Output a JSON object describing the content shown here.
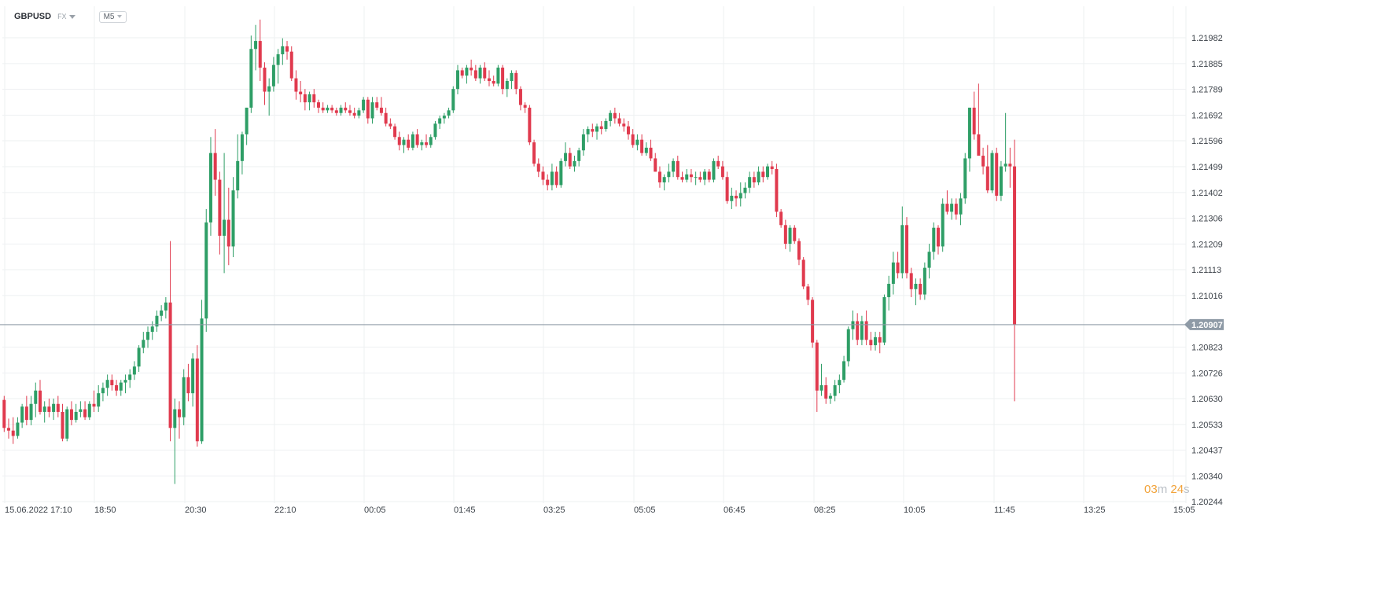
{
  "header": {
    "symbol": "GBPUSD",
    "asset_class": "FX",
    "timeframe": "M5"
  },
  "timer": {
    "minutes": "03",
    "minutes_unit": "m",
    "seconds": "24",
    "seconds_unit": "s"
  },
  "colors": {
    "up": "#2e9e66",
    "down": "#e03a4e",
    "grid": "#eef0f2",
    "current_price_line": "#8e9aa6",
    "price_label_bg": "#8e9aa6",
    "axis_text": "#3c4249"
  },
  "chart_data": {
    "type": "candlestick",
    "symbol": "GBPUSD",
    "interval": "M5",
    "current_price": 1.20907,
    "current_price_label": "1.20907",
    "y_ticks": [
      "1.21982",
      "1.21885",
      "1.21789",
      "1.21692",
      "1.21596",
      "1.21499",
      "1.21402",
      "1.21306",
      "1.21209",
      "1.21113",
      "1.21016",
      "1.20823",
      "1.20726",
      "1.20630",
      "1.20533",
      "1.20437",
      "1.20340",
      "1.20244"
    ],
    "ylim": [
      1.2023,
      1.2209
    ],
    "x_ticks": [
      "15.06.2022 17:10",
      "18:50",
      "20:30",
      "22:10",
      "00:05",
      "01:45",
      "03:25",
      "05:05",
      "06:45",
      "08:25",
      "10:05",
      "11:45",
      "13:25",
      "15:05"
    ],
    "grid": true,
    "candles": [
      [
        1.20625,
        1.2064,
        1.20505,
        1.2052
      ],
      [
        1.2052,
        1.20555,
        1.2048,
        1.2051
      ],
      [
        1.2051,
        1.2056,
        1.2046,
        1.2049
      ],
      [
        1.2049,
        1.2056,
        1.2048,
        1.2054
      ],
      [
        1.2054,
        1.2061,
        1.2052,
        1.206
      ],
      [
        1.206,
        1.2064,
        1.2053,
        1.2055
      ],
      [
        1.2055,
        1.2064,
        1.2053,
        1.2061
      ],
      [
        1.2061,
        1.2069,
        1.2056,
        1.2066
      ],
      [
        1.2066,
        1.207,
        1.2057,
        1.2058
      ],
      [
        1.2058,
        1.2062,
        1.2054,
        1.206
      ],
      [
        1.206,
        1.2063,
        1.2056,
        1.2058
      ],
      [
        1.2058,
        1.2063,
        1.2055,
        1.2061
      ],
      [
        1.2061,
        1.2064,
        1.2056,
        1.2058
      ],
      [
        1.2058,
        1.2061,
        1.2047,
        1.2048
      ],
      [
        1.2048,
        1.206,
        1.2047,
        1.2059
      ],
      [
        1.2059,
        1.2062,
        1.2053,
        1.2055
      ],
      [
        1.2055,
        1.2061,
        1.2054,
        1.2058
      ],
      [
        1.2058,
        1.2062,
        1.2056,
        1.2059
      ],
      [
        1.2059,
        1.2062,
        1.2055,
        1.2056
      ],
      [
        1.2056,
        1.2062,
        1.2055,
        1.2061
      ],
      [
        1.2061,
        1.2066,
        1.2058,
        1.206
      ],
      [
        1.206,
        1.2068,
        1.2058,
        1.2065
      ],
      [
        1.2065,
        1.2069,
        1.2062,
        1.2067
      ],
      [
        1.2067,
        1.2072,
        1.2064,
        1.207
      ],
      [
        1.207,
        1.2072,
        1.2066,
        1.2068
      ],
      [
        1.2068,
        1.207,
        1.2064,
        1.2066
      ],
      [
        1.2066,
        1.207,
        1.2064,
        1.2069
      ],
      [
        1.2069,
        1.2072,
        1.2065,
        1.207
      ],
      [
        1.207,
        1.2074,
        1.2067,
        1.2072
      ],
      [
        1.2072,
        1.2077,
        1.207,
        1.2075
      ],
      [
        1.2075,
        1.2083,
        1.2073,
        1.2082
      ],
      [
        1.2082,
        1.2088,
        1.208,
        1.2085
      ],
      [
        1.2085,
        1.209,
        1.2082,
        1.2088
      ],
      [
        1.2088,
        1.2092,
        1.2085,
        1.209
      ],
      [
        1.209,
        1.2096,
        1.2088,
        1.2094
      ],
      [
        1.2094,
        1.2098,
        1.2092,
        1.2096
      ],
      [
        1.2096,
        1.2101,
        1.2093,
        1.2099
      ],
      [
        1.2099,
        1.2122,
        1.2047,
        1.2052
      ],
      [
        1.2052,
        1.2063,
        1.2031,
        1.2059
      ],
      [
        1.2059,
        1.2062,
        1.2048,
        1.2056
      ],
      [
        1.2056,
        1.2074,
        1.2053,
        1.2071
      ],
      [
        1.2071,
        1.2076,
        1.2062,
        1.2065
      ],
      [
        1.2065,
        1.208,
        1.206,
        1.2078
      ],
      [
        1.2078,
        1.2083,
        1.2045,
        1.2047
      ],
      [
        1.2047,
        1.21,
        1.2046,
        1.2093
      ],
      [
        1.2093,
        1.2134,
        1.2088,
        1.2129
      ],
      [
        1.2129,
        1.2161,
        1.2124,
        1.2155
      ],
      [
        1.2155,
        1.2164,
        1.2139,
        1.2145
      ],
      [
        1.2145,
        1.2148,
        1.2117,
        1.2124
      ],
      [
        1.2124,
        1.2155,
        1.211,
        1.213
      ],
      [
        1.213,
        1.2142,
        1.2113,
        1.212
      ],
      [
        1.212,
        1.2146,
        1.2116,
        1.2141
      ],
      [
        1.2141,
        1.2162,
        1.2138,
        1.2152
      ],
      [
        1.2152,
        1.2163,
        1.2147,
        1.2162
      ],
      [
        1.2162,
        1.2172,
        1.2158,
        1.2172
      ],
      [
        1.2172,
        1.2199,
        1.217,
        1.2194
      ],
      [
        1.2194,
        1.2203,
        1.2186,
        1.2197
      ],
      [
        1.2197,
        1.2205,
        1.2182,
        1.2187
      ],
      [
        1.2187,
        1.2189,
        1.2173,
        1.2178
      ],
      [
        1.2178,
        1.2183,
        1.2169,
        1.218
      ],
      [
        1.218,
        1.2191,
        1.2178,
        1.2188
      ],
      [
        1.2188,
        1.2194,
        1.2181,
        1.2192
      ],
      [
        1.2192,
        1.2198,
        1.2188,
        1.2195
      ],
      [
        1.2195,
        1.2197,
        1.219,
        1.2193
      ],
      [
        1.2193,
        1.2195,
        1.2182,
        1.2183
      ],
      [
        1.2183,
        1.2186,
        1.2175,
        1.2178
      ],
      [
        1.2178,
        1.2182,
        1.2174,
        1.2177
      ],
      [
        1.2177,
        1.2179,
        1.2171,
        1.2174
      ],
      [
        1.2174,
        1.2178,
        1.2171,
        1.2177
      ],
      [
        1.2177,
        1.2179,
        1.2172,
        1.2174
      ],
      [
        1.2174,
        1.2175,
        1.217,
        1.2172
      ],
      [
        1.2172,
        1.2174,
        1.217,
        1.2171
      ],
      [
        1.2171,
        1.2173,
        1.217,
        1.2172
      ],
      [
        1.2172,
        1.2173,
        1.217,
        1.2171
      ],
      [
        1.2171,
        1.2172,
        1.2169,
        1.217
      ],
      [
        1.217,
        1.2173,
        1.2169,
        1.2172
      ],
      [
        1.2172,
        1.2174,
        1.217,
        1.2171
      ],
      [
        1.2171,
        1.2173,
        1.2169,
        1.217
      ],
      [
        1.217,
        1.2172,
        1.2168,
        1.2169
      ],
      [
        1.2169,
        1.2172,
        1.2168,
        1.2171
      ],
      [
        1.2171,
        1.2176,
        1.217,
        1.2175
      ],
      [
        1.2175,
        1.2176,
        1.2166,
        1.2168
      ],
      [
        1.2168,
        1.2176,
        1.2166,
        1.2174
      ],
      [
        1.2174,
        1.2176,
        1.2171,
        1.2172
      ],
      [
        1.2172,
        1.2176,
        1.2169,
        1.217
      ],
      [
        1.217,
        1.2172,
        1.2165,
        1.2166
      ],
      [
        1.2166,
        1.2168,
        1.2164,
        1.2165
      ],
      [
        1.2165,
        1.2166,
        1.216,
        1.2161
      ],
      [
        1.2161,
        1.2163,
        1.2156,
        1.2158
      ],
      [
        1.2158,
        1.2161,
        1.2155,
        1.216
      ],
      [
        1.216,
        1.2162,
        1.2156,
        1.2157
      ],
      [
        1.2157,
        1.2163,
        1.2156,
        1.2162
      ],
      [
        1.2162,
        1.2164,
        1.2157,
        1.2158
      ],
      [
        1.2158,
        1.216,
        1.2156,
        1.2159
      ],
      [
        1.2159,
        1.2162,
        1.2157,
        1.2158
      ],
      [
        1.2158,
        1.2162,
        1.2157,
        1.2161
      ],
      [
        1.2161,
        1.2167,
        1.216,
        1.2166
      ],
      [
        1.2166,
        1.2169,
        1.2164,
        1.2168
      ],
      [
        1.2168,
        1.217,
        1.2166,
        1.2169
      ],
      [
        1.2169,
        1.2172,
        1.2168,
        1.2171
      ],
      [
        1.2171,
        1.218,
        1.217,
        1.2179
      ],
      [
        1.2179,
        1.2188,
        1.2177,
        1.2186
      ],
      [
        1.2186,
        1.2187,
        1.2183,
        1.2184
      ],
      [
        1.2184,
        1.2188,
        1.2181,
        1.2187
      ],
      [
        1.2187,
        1.219,
        1.2184,
        1.2186
      ],
      [
        1.2186,
        1.2188,
        1.2182,
        1.2183
      ],
      [
        1.2183,
        1.2188,
        1.2181,
        1.2187
      ],
      [
        1.2187,
        1.2189,
        1.2182,
        1.2183
      ],
      [
        1.2183,
        1.2186,
        1.218,
        1.2182
      ],
      [
        1.2182,
        1.2184,
        1.218,
        1.2181
      ],
      [
        1.2181,
        1.2188,
        1.218,
        1.2187
      ],
      [
        1.2187,
        1.2188,
        1.2177,
        1.2179
      ],
      [
        1.2179,
        1.2183,
        1.2176,
        1.2182
      ],
      [
        1.2182,
        1.2186,
        1.2179,
        1.2185
      ],
      [
        1.2185,
        1.2186,
        1.2177,
        1.2179
      ],
      [
        1.2179,
        1.218,
        1.2171,
        1.2173
      ],
      [
        1.2173,
        1.2174,
        1.217,
        1.2172
      ],
      [
        1.2172,
        1.2173,
        1.2158,
        1.2159
      ],
      [
        1.2159,
        1.216,
        1.215,
        1.2151
      ],
      [
        1.2151,
        1.2153,
        1.2146,
        1.2148
      ],
      [
        1.2148,
        1.215,
        1.2143,
        1.2145
      ],
      [
        1.2145,
        1.2147,
        1.2141,
        1.2143
      ],
      [
        1.2143,
        1.2151,
        1.2141,
        1.2148
      ],
      [
        1.2148,
        1.215,
        1.2142,
        1.2143
      ],
      [
        1.2143,
        1.2153,
        1.2142,
        1.2152
      ],
      [
        1.2152,
        1.2159,
        1.215,
        1.2155
      ],
      [
        1.2155,
        1.2157,
        1.2149,
        1.215
      ],
      [
        1.215,
        1.2154,
        1.2148,
        1.2152
      ],
      [
        1.2152,
        1.2157,
        1.215,
        1.2156
      ],
      [
        1.2156,
        1.2164,
        1.2154,
        1.2162
      ],
      [
        1.2162,
        1.2165,
        1.2159,
        1.2164
      ],
      [
        1.2164,
        1.2166,
        1.2161,
        1.2163
      ],
      [
        1.2163,
        1.2166,
        1.216,
        1.2165
      ],
      [
        1.2165,
        1.2167,
        1.2162,
        1.2164
      ],
      [
        1.2164,
        1.2168,
        1.2163,
        1.2167
      ],
      [
        1.2167,
        1.2171,
        1.2165,
        1.217
      ],
      [
        1.217,
        1.2172,
        1.2166,
        1.2168
      ],
      [
        1.2168,
        1.217,
        1.2165,
        1.2166
      ],
      [
        1.2166,
        1.2168,
        1.2163,
        1.2165
      ],
      [
        1.2165,
        1.2167,
        1.216,
        1.2162
      ],
      [
        1.2162,
        1.2164,
        1.2157,
        1.2158
      ],
      [
        1.2158,
        1.2162,
        1.2156,
        1.216
      ],
      [
        1.216,
        1.2162,
        1.2154,
        1.2155
      ],
      [
        1.2155,
        1.2159,
        1.2154,
        1.2157
      ],
      [
        1.2157,
        1.216,
        1.2152,
        1.2153
      ],
      [
        1.2153,
        1.2155,
        1.2148,
        1.2148
      ],
      [
        1.2148,
        1.215,
        1.2142,
        1.2144
      ],
      [
        1.2144,
        1.2147,
        1.2141,
        1.2146
      ],
      [
        1.2146,
        1.2151,
        1.2144,
        1.2148
      ],
      [
        1.2148,
        1.2153,
        1.2146,
        1.2152
      ],
      [
        1.2152,
        1.2154,
        1.2145,
        1.2146
      ],
      [
        1.2146,
        1.2148,
        1.2144,
        1.2145
      ],
      [
        1.2145,
        1.2149,
        1.2144,
        1.2147
      ],
      [
        1.2147,
        1.2149,
        1.2144,
        1.2146
      ],
      [
        1.2146,
        1.2148,
        1.2143,
        1.2146
      ],
      [
        1.2146,
        1.2148,
        1.2144,
        1.2145
      ],
      [
        1.2145,
        1.2149,
        1.2143,
        1.2148
      ],
      [
        1.2148,
        1.2149,
        1.2144,
        1.2145
      ],
      [
        1.2145,
        1.2153,
        1.2144,
        1.2152
      ],
      [
        1.2152,
        1.2154,
        1.2149,
        1.215
      ],
      [
        1.215,
        1.2152,
        1.2145,
        1.2146
      ],
      [
        1.2146,
        1.2148,
        1.2136,
        1.2137
      ],
      [
        1.2137,
        1.2142,
        1.2134,
        1.2139
      ],
      [
        1.2139,
        1.2141,
        1.2135,
        1.2138
      ],
      [
        1.2138,
        1.2144,
        1.2135,
        1.214
      ],
      [
        1.214,
        1.2144,
        1.2138,
        1.2142
      ],
      [
        1.2142,
        1.2148,
        1.214,
        1.2146
      ],
      [
        1.2146,
        1.2148,
        1.2142,
        1.2144
      ],
      [
        1.2144,
        1.215,
        1.2143,
        1.2148
      ],
      [
        1.2148,
        1.215,
        1.2144,
        1.2146
      ],
      [
        1.2146,
        1.2151,
        1.2145,
        1.215
      ],
      [
        1.215,
        1.2152,
        1.2147,
        1.2149
      ],
      [
        1.2149,
        1.2151,
        1.2131,
        1.2133
      ],
      [
        1.2133,
        1.2134,
        1.2127,
        1.2128
      ],
      [
        1.2128,
        1.213,
        1.2119,
        1.2121
      ],
      [
        1.2121,
        1.2128,
        1.2118,
        1.2127
      ],
      [
        1.2127,
        1.2128,
        1.2121,
        1.2122
      ],
      [
        1.2122,
        1.2123,
        1.2113,
        1.2115
      ],
      [
        1.2115,
        1.2116,
        1.2104,
        1.2105
      ],
      [
        1.2105,
        1.2106,
        1.2098,
        1.21
      ],
      [
        1.21,
        1.2101,
        1.2082,
        1.2084
      ],
      [
        1.2084,
        1.2085,
        1.2058,
        1.2066
      ],
      [
        1.2066,
        1.2076,
        1.2064,
        1.2068
      ],
      [
        1.2068,
        1.2071,
        1.2061,
        1.2063
      ],
      [
        1.2063,
        1.2065,
        1.2061,
        1.2064
      ],
      [
        1.2064,
        1.207,
        1.2062,
        1.2068
      ],
      [
        1.2068,
        1.2072,
        1.2065,
        1.207
      ],
      [
        1.207,
        1.2079,
        1.2069,
        1.2077
      ],
      [
        1.2077,
        1.209,
        1.2075,
        1.2089
      ],
      [
        1.2089,
        1.2096,
        1.2085,
        1.2092
      ],
      [
        1.2092,
        1.2095,
        1.2083,
        1.2085
      ],
      [
        1.2085,
        1.2094,
        1.2083,
        1.2092
      ],
      [
        1.2092,
        1.2096,
        1.2083,
        1.2085
      ],
      [
        1.2085,
        1.2088,
        1.2081,
        1.2083
      ],
      [
        1.2083,
        1.2088,
        1.2081,
        1.2086
      ],
      [
        1.2086,
        1.2088,
        1.208,
        1.2084
      ],
      [
        1.2084,
        1.2102,
        1.2083,
        1.2101
      ],
      [
        1.2101,
        1.2109,
        1.2096,
        1.2106
      ],
      [
        1.2106,
        1.2118,
        1.2102,
        1.2114
      ],
      [
        1.2114,
        1.2118,
        1.2108,
        1.211
      ],
      [
        1.211,
        1.2135,
        1.2108,
        1.2128
      ],
      [
        1.2128,
        1.2131,
        1.2108,
        1.211
      ],
      [
        1.211,
        1.2112,
        1.2101,
        1.2104
      ],
      [
        1.2104,
        1.2108,
        1.2098,
        1.2106
      ],
      [
        1.2106,
        1.2108,
        1.21,
        1.2102
      ],
      [
        1.2102,
        1.2114,
        1.21,
        1.2112
      ],
      [
        1.2112,
        1.2121,
        1.2108,
        1.2118
      ],
      [
        1.2118,
        1.2129,
        1.2115,
        1.2127
      ],
      [
        1.2127,
        1.2128,
        1.2117,
        1.212
      ],
      [
        1.212,
        1.2138,
        1.2118,
        1.2136
      ],
      [
        1.2136,
        1.2141,
        1.2132,
        1.2133
      ],
      [
        1.2133,
        1.2138,
        1.213,
        1.2136
      ],
      [
        1.2136,
        1.2138,
        1.213,
        1.2132
      ],
      [
        1.2132,
        1.214,
        1.2128,
        1.2138
      ],
      [
        1.2138,
        1.2155,
        1.2136,
        1.2153
      ],
      [
        1.2153,
        1.2172,
        1.2148,
        1.2172
      ],
      [
        1.2172,
        1.2178,
        1.216,
        1.2162
      ],
      [
        1.2162,
        1.2181,
        1.2154,
        1.2154
      ],
      [
        1.2154,
        1.2157,
        1.2147,
        1.215
      ],
      [
        1.215,
        1.2158,
        1.214,
        1.2141
      ],
      [
        1.2141,
        1.2156,
        1.214,
        1.2155
      ],
      [
        1.2155,
        1.2157,
        1.2137,
        1.2139
      ],
      [
        1.2139,
        1.2152,
        1.2137,
        1.215
      ],
      [
        1.215,
        1.217,
        1.2148,
        1.2151
      ],
      [
        1.2151,
        1.2157,
        1.2142,
        1.215
      ],
      [
        1.215,
        1.216,
        1.2062,
        1.20907
      ]
    ]
  }
}
